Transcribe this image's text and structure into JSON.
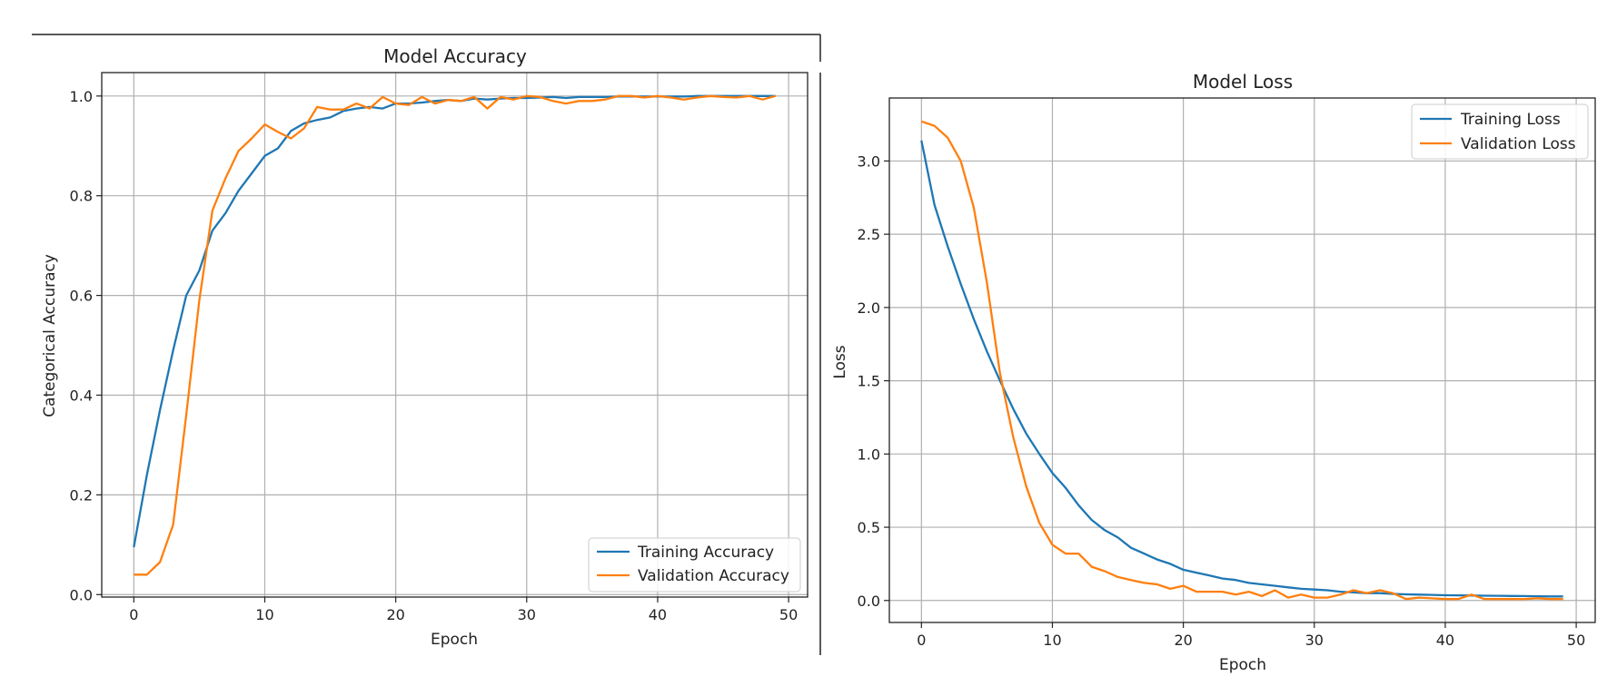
{
  "chart_data": [
    {
      "type": "line",
      "title": "Model Accuracy",
      "xlabel": "Epoch",
      "ylabel": "Categorical Accuracy",
      "xlim": [
        -2.45,
        51.45
      ],
      "ylim": [
        -0.005,
        1.047
      ],
      "xticks": [
        0,
        10,
        20,
        30,
        40,
        50
      ],
      "xtick_labels": [
        "0",
        "10",
        "20",
        "30",
        "40",
        "50"
      ],
      "yticks": [
        0.0,
        0.2,
        0.4,
        0.6,
        0.8,
        1.0
      ],
      "ytick_labels": [
        "0.0",
        "0.2",
        "0.4",
        "0.6",
        "0.8",
        "1.0"
      ],
      "grid": true,
      "legend": "lower-right",
      "x": [
        0,
        1,
        2,
        3,
        4,
        5,
        6,
        7,
        8,
        9,
        10,
        11,
        12,
        13,
        14,
        15,
        16,
        17,
        18,
        19,
        20,
        21,
        22,
        23,
        24,
        25,
        26,
        27,
        28,
        29,
        30,
        31,
        32,
        33,
        34,
        35,
        36,
        37,
        38,
        39,
        40,
        41,
        42,
        43,
        44,
        45,
        46,
        47,
        48,
        49
      ],
      "series": [
        {
          "name": "Training Accuracy",
          "color": "#1f77b4",
          "values": [
            0.095,
            0.24,
            0.37,
            0.49,
            0.6,
            0.65,
            0.73,
            0.765,
            0.81,
            0.845,
            0.88,
            0.895,
            0.93,
            0.945,
            0.952,
            0.957,
            0.97,
            0.975,
            0.978,
            0.975,
            0.985,
            0.985,
            0.987,
            0.99,
            0.992,
            0.99,
            0.995,
            0.993,
            0.995,
            0.996,
            0.996,
            0.997,
            0.998,
            0.996,
            0.998,
            0.998,
            0.998,
            0.999,
            0.999,
            0.999,
            0.999,
            0.999,
            0.999,
            1.0,
            1.0,
            1.0,
            1.0,
            1.0,
            1.0,
            1.0
          ]
        },
        {
          "name": "Validation Accuracy",
          "color": "#ff7f0e",
          "values": [
            0.04,
            0.04,
            0.065,
            0.14,
            0.36,
            0.59,
            0.77,
            0.835,
            0.89,
            0.915,
            0.943,
            0.928,
            0.915,
            0.935,
            0.978,
            0.973,
            0.973,
            0.985,
            0.975,
            0.998,
            0.985,
            0.982,
            0.998,
            0.985,
            0.992,
            0.99,
            0.998,
            0.975,
            0.998,
            0.993,
            1.0,
            0.998,
            0.99,
            0.985,
            0.99,
            0.99,
            0.993,
            1.0,
            1.0,
            0.997,
            1.0,
            0.997,
            0.993,
            0.997,
            1.0,
            0.998,
            0.997,
            1.0,
            0.993,
            1.0
          ]
        }
      ]
    },
    {
      "type": "line",
      "title": "Model Loss",
      "xlabel": "Epoch",
      "ylabel": "Loss",
      "xlim": [
        -2.45,
        51.45
      ],
      "ylim": [
        -0.15,
        3.43
      ],
      "xticks": [
        0,
        10,
        20,
        30,
        40,
        50
      ],
      "xtick_labels": [
        "0",
        "10",
        "20",
        "30",
        "40",
        "50"
      ],
      "yticks": [
        0.0,
        0.5,
        1.0,
        1.5,
        2.0,
        2.5,
        3.0
      ],
      "ytick_labels": [
        "0.0",
        "0.5",
        "1.0",
        "1.5",
        "2.0",
        "2.5",
        "3.0"
      ],
      "grid": true,
      "legend": "top-right",
      "x": [
        0,
        1,
        2,
        3,
        4,
        5,
        6,
        7,
        8,
        9,
        10,
        11,
        12,
        13,
        14,
        15,
        16,
        17,
        18,
        19,
        20,
        21,
        22,
        23,
        24,
        25,
        26,
        27,
        28,
        29,
        30,
        31,
        32,
        33,
        34,
        35,
        36,
        37,
        38,
        39,
        40,
        41,
        42,
        43,
        44,
        45,
        46,
        47,
        48,
        49
      ],
      "series": [
        {
          "name": "Training Loss",
          "color": "#1f77b4",
          "values": [
            3.14,
            2.7,
            2.42,
            2.16,
            1.92,
            1.7,
            1.5,
            1.31,
            1.14,
            1.0,
            0.87,
            0.77,
            0.65,
            0.55,
            0.48,
            0.43,
            0.36,
            0.32,
            0.28,
            0.25,
            0.21,
            0.19,
            0.17,
            0.15,
            0.14,
            0.12,
            0.11,
            0.1,
            0.09,
            0.08,
            0.075,
            0.07,
            0.06,
            0.055,
            0.05,
            0.05,
            0.045,
            0.042,
            0.04,
            0.038,
            0.036,
            0.035,
            0.034,
            0.033,
            0.032,
            0.031,
            0.03,
            0.029,
            0.028,
            0.028
          ]
        },
        {
          "name": "Validation Loss",
          "color": "#ff7f0e",
          "values": [
            3.27,
            3.24,
            3.16,
            3.0,
            2.68,
            2.17,
            1.55,
            1.12,
            0.78,
            0.53,
            0.38,
            0.32,
            0.32,
            0.23,
            0.2,
            0.16,
            0.14,
            0.12,
            0.11,
            0.08,
            0.1,
            0.06,
            0.06,
            0.06,
            0.04,
            0.06,
            0.03,
            0.07,
            0.02,
            0.04,
            0.02,
            0.02,
            0.04,
            0.07,
            0.05,
            0.07,
            0.05,
            0.01,
            0.02,
            0.015,
            0.01,
            0.01,
            0.04,
            0.01,
            0.01,
            0.01,
            0.01,
            0.015,
            0.01,
            0.01
          ]
        }
      ]
    }
  ]
}
